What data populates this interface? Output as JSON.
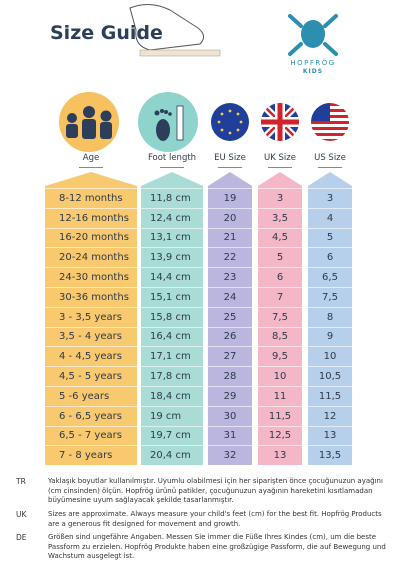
{
  "header": {
    "title": "Size Guide"
  },
  "logo": {
    "brand": "HOPFRÖG",
    "sub": "KIDS"
  },
  "table": {
    "columns": [
      "Age",
      "Foot length",
      "EU Size",
      "UK Size",
      "US Size"
    ],
    "rows": [
      [
        "8-12 months",
        "11,8 cm",
        "19",
        "3",
        "3"
      ],
      [
        "12-16 months",
        "12,4 cm",
        "20",
        "3,5",
        "4"
      ],
      [
        "16-20 months",
        "13,1 cm",
        "21",
        "4,5",
        "5"
      ],
      [
        "20-24 months",
        "13,9 cm",
        "22",
        "5",
        "6"
      ],
      [
        "24-30 months",
        "14,4 cm",
        "23",
        "6",
        "6,5"
      ],
      [
        "30-36 months",
        "15,1 cm",
        "24",
        "7",
        "7,5"
      ],
      [
        "3 - 3,5 years",
        "15,8 cm",
        "25",
        "7,5",
        "8"
      ],
      [
        "3,5 - 4 years",
        "16,4 cm",
        "26",
        "8,5",
        "9"
      ],
      [
        "4 - 4,5 years",
        "17,1 cm",
        "27",
        "9,5",
        "10"
      ],
      [
        "4,5 - 5 years",
        "17,8 cm",
        "28",
        "10",
        "10,5"
      ],
      [
        "5 -6 years",
        "18,4 cm",
        "29",
        "11",
        "11,5"
      ],
      [
        "6 - 6,5 years",
        "19 cm",
        "30",
        "11,5",
        "12"
      ],
      [
        "6,5 - 7 years",
        "19,7 cm",
        "31",
        "12,5",
        "13"
      ],
      [
        "7 - 8 years",
        "20,4 cm",
        "32",
        "13",
        "13,5"
      ]
    ]
  },
  "notes": [
    {
      "lang": "TR",
      "text": "Yaklaşık boyutlar kullanılmıştır. Uyumlu olabilmesi için her siparişten önce çocuğunuzun ayağını (cm cinsinden) ölçün. Hopfrög ürünü patikler, çocuğunuzun ayağının hareketini kısıtlamadan büyümesine uyum sağlayacak şekilde tasarlanmıştır."
    },
    {
      "lang": "UK",
      "text": "Sizes are approximate. Always measure your child's feet (cm) for the best fit. Hopfrög Products are a generous fit designed for movement and growth."
    },
    {
      "lang": "DE",
      "text": "Größen sind ungefähre Angaben. Messen Sie immer die Füße Ihres Kindes (cm), um die beste Passform zu erzielen. Hopfrög Produkte haben eine großzügige Passform, die auf Bewegung und Wachstum ausgelegt ist."
    }
  ]
}
